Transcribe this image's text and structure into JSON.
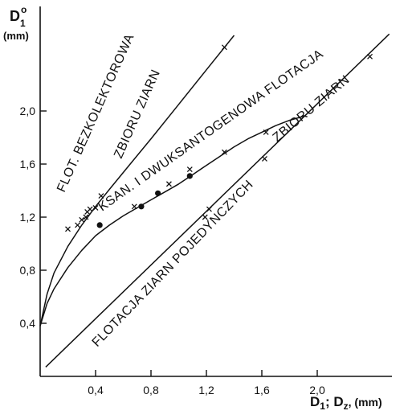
{
  "chart_data": {
    "type": "scatter",
    "y_axis_label": "D",
    "y_axis_subscript": "1",
    "y_axis_superscript": "o",
    "y_axis_unit": "(mm)",
    "x_axis_label_parts": [
      "D",
      "1",
      "; D",
      "z",
      ", (mm)"
    ],
    "xlim": [
      0,
      2.58
    ],
    "ylim": [
      0,
      2.58
    ],
    "x_ticks": [
      "0,4",
      "0,8",
      "1,2",
      "1,6",
      "2,0"
    ],
    "x_tick_values": [
      0.4,
      0.8,
      1.2,
      1.6,
      2.0
    ],
    "y_ticks": [
      "0,4",
      "0,8",
      "1,2",
      "1,6",
      "2,0"
    ],
    "y_tick_values": [
      0.4,
      0.8,
      1.2,
      1.6,
      2.0
    ],
    "series": [
      {
        "label_lines": [
          "FLOT. BEZKOLEKTOROWA",
          "ZBIORU ZIARN"
        ],
        "curve": [
          [
            0.0,
            0.38
          ],
          [
            0.05,
            0.62
          ],
          [
            0.1,
            0.78
          ],
          [
            0.2,
            0.98
          ],
          [
            0.3,
            1.14
          ],
          [
            0.4,
            1.28
          ],
          [
            0.5,
            1.41
          ],
          [
            0.65,
            1.6
          ],
          [
            0.8,
            1.79
          ],
          [
            1.0,
            2.05
          ],
          [
            1.2,
            2.31
          ],
          [
            1.4,
            2.57
          ]
        ],
        "cross_points": [
          [
            0.2,
            1.11
          ],
          [
            0.27,
            1.14
          ],
          [
            0.3,
            1.18
          ],
          [
            0.33,
            1.2
          ],
          [
            0.34,
            1.24
          ],
          [
            0.36,
            1.26
          ],
          [
            0.4,
            1.27
          ],
          [
            0.44,
            1.36
          ],
          [
            1.33,
            2.48
          ]
        ]
      },
      {
        "label_lines": [
          "KSAN. I DWUKSANTOGENOWA FLOTACJA",
          "ZBIORU ZIARN"
        ],
        "curve": [
          [
            0.0,
            0.38
          ],
          [
            0.05,
            0.55
          ],
          [
            0.1,
            0.66
          ],
          [
            0.2,
            0.82
          ],
          [
            0.3,
            0.95
          ],
          [
            0.4,
            1.06
          ],
          [
            0.5,
            1.14
          ],
          [
            0.6,
            1.21
          ],
          [
            0.7,
            1.27
          ],
          [
            0.8,
            1.33
          ],
          [
            0.9,
            1.39
          ],
          [
            1.0,
            1.45
          ],
          [
            1.1,
            1.52
          ],
          [
            1.2,
            1.59
          ],
          [
            1.3,
            1.66
          ],
          [
            1.4,
            1.73
          ],
          [
            1.5,
            1.79
          ],
          [
            1.6,
            1.84
          ],
          [
            1.7,
            1.89
          ],
          [
            1.8,
            1.93
          ],
          [
            1.9,
            1.96
          ]
        ],
        "cross_points": [
          [
            0.68,
            1.28
          ],
          [
            0.93,
            1.45
          ],
          [
            1.08,
            1.56
          ],
          [
            1.33,
            1.69
          ],
          [
            1.63,
            1.84
          ]
        ],
        "dot_points": [
          [
            0.43,
            1.14
          ],
          [
            0.73,
            1.28
          ],
          [
            0.85,
            1.38
          ],
          [
            1.08,
            1.51
          ]
        ]
      },
      {
        "label_lines": [
          "FLOTACJA ZIARN POJEDYNCZYCH"
        ],
        "curve": [
          [
            0.04,
            0.07
          ],
          [
            2.52,
            2.58
          ]
        ],
        "cross_points": [
          [
            1.19,
            1.2
          ],
          [
            1.22,
            1.26
          ],
          [
            1.62,
            1.64
          ],
          [
            2.38,
            2.41
          ]
        ]
      }
    ]
  }
}
